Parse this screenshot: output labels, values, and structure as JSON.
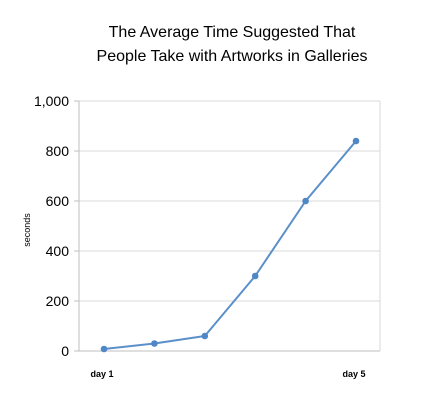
{
  "chart_data": {
    "type": "line",
    "title_lines": [
      "The Average Time Suggested That",
      "People Take with Artworks in Galleries"
    ],
    "xlabel": "",
    "ylabel": "seconds",
    "x_tick_labels": [
      "day 1",
      "",
      "",
      "",
      "",
      "day 5"
    ],
    "ylim": [
      0,
      1000
    ],
    "y_ticks": [
      0,
      200,
      400,
      600,
      800,
      1000
    ],
    "y_tick_labels": [
      "0",
      "200",
      "400",
      "600",
      "800",
      "1,000"
    ],
    "grid": true,
    "legend": "none",
    "series": [
      {
        "values": [
          8,
          30,
          60,
          300,
          600,
          840
        ]
      }
    ],
    "colors": {
      "line": "#5b8fc9",
      "marker": "#4f86c6",
      "grid": "#d9d9d9",
      "axis": "#bfbfbf"
    }
  }
}
